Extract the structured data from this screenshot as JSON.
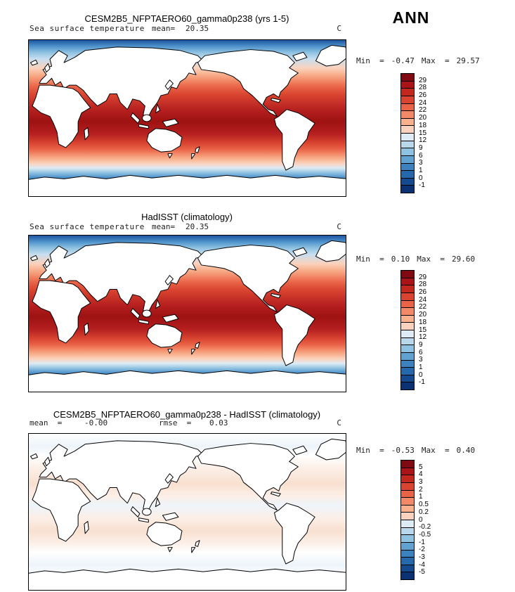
{
  "season": "ANN",
  "panels": [
    {
      "title": "CESM2B5_NFPTAERO60_gamma0p238 (yrs 1-5)",
      "var_label": "Sea surface temperature",
      "mean_label": "mean=",
      "mean_value": "20.35",
      "units": "C",
      "min_label": "Min  =",
      "min_value": "-0.47",
      "max_label": "Max  =",
      "max_value": "29.57",
      "colorbar": "sst"
    },
    {
      "title": "HadISST (climatology)",
      "var_label": "Sea surface temperature",
      "mean_label": "mean=",
      "mean_value": "20.35",
      "units": "C",
      "min_label": "Min  =",
      "min_value": "0.10",
      "max_label": "Max  =",
      "max_value": "29.60",
      "colorbar": "sst"
    },
    {
      "title": "CESM2B5_NFPTAERO60_gamma0p238 - HadISST (climatology)",
      "mean_label": "mean  =",
      "mean_value": "-0.00",
      "rmse_label": "rmse  =",
      "rmse_value": "0.03",
      "units": "C",
      "min_label": "Min  =",
      "min_value": "-0.53",
      "max_label": "Max  =",
      "max_value": "0.40",
      "colorbar": "diff"
    }
  ],
  "colorbars": {
    "sst": {
      "labels": [
        "29",
        "28",
        "26",
        "24",
        "22",
        "20",
        "18",
        "15",
        "12",
        "9",
        "6",
        "3",
        "1",
        "0",
        "-1"
      ],
      "colors": [
        "#7f0a11",
        "#a81417",
        "#c2281e",
        "#d94430",
        "#e96347",
        "#f28a68",
        "#f8b08d",
        "#fbd2bd",
        "#dcebf5",
        "#b9d8ec",
        "#8fc2e0",
        "#62a2d0",
        "#3c82be",
        "#2568ab",
        "#154a8f",
        "#0b3272"
      ]
    },
    "diff": {
      "labels": [
        "5",
        "4",
        "3",
        "2",
        "1",
        "0.5",
        "0.2",
        "0",
        "-0.2",
        "-0.5",
        "-1",
        "-2",
        "-3",
        "-4",
        "-5"
      ],
      "colors": [
        "#7f0a11",
        "#a81417",
        "#c2281e",
        "#d94430",
        "#e96347",
        "#f28a68",
        "#f8b08d",
        "#fbd2bd",
        "#dcebf5",
        "#b9d8ec",
        "#8fc2e0",
        "#62a2d0",
        "#3c82be",
        "#2568ab",
        "#154a8f",
        "#0b3272"
      ]
    }
  },
  "chart_data": [
    {
      "type": "heatmap",
      "subtype": "global filled-contour map",
      "title": "CESM2B5_NFPTAERO60_gamma0p238 (yrs 1-5)",
      "variable": "Sea surface temperature",
      "season": "ANN",
      "units": "C",
      "stats": {
        "mean": 20.35,
        "min": -0.47,
        "max": 29.57
      },
      "contour_levels": [
        -1,
        0,
        1,
        3,
        6,
        9,
        12,
        15,
        18,
        20,
        22,
        24,
        26,
        28,
        29
      ],
      "palette": "dark blue (cold, high latitudes) to dark red (warm, ~29C tropics), land masked white",
      "legend_position": "right"
    },
    {
      "type": "heatmap",
      "subtype": "global filled-contour map",
      "title": "HadISST (climatology)",
      "variable": "Sea surface temperature",
      "season": "ANN",
      "units": "C",
      "stats": {
        "mean": 20.35,
        "min": 0.1,
        "max": 29.6
      },
      "contour_levels": [
        -1,
        0,
        1,
        3,
        6,
        9,
        12,
        15,
        18,
        20,
        22,
        24,
        26,
        28,
        29
      ],
      "palette": "dark blue (cold, high latitudes) to dark red (warm, ~29C tropics), land masked white",
      "legend_position": "right"
    },
    {
      "type": "heatmap",
      "subtype": "global filled-contour difference map",
      "title": "CESM2B5_NFPTAERO60_gamma0p238 - HadISST (climatology)",
      "variable": "Sea surface temperature difference",
      "season": "ANN",
      "units": "C",
      "stats": {
        "mean": -0.0,
        "rmse": 0.03,
        "min": -0.53,
        "max": 0.4
      },
      "contour_levels": [
        -5,
        -4,
        -3,
        -2,
        -1,
        -0.5,
        -0.2,
        0,
        0.2,
        0.5,
        1,
        2,
        3,
        4,
        5
      ],
      "palette": "blue-white-red diverging; field mostly near zero (faint pale red/blue bands)",
      "legend_position": "right"
    }
  ]
}
